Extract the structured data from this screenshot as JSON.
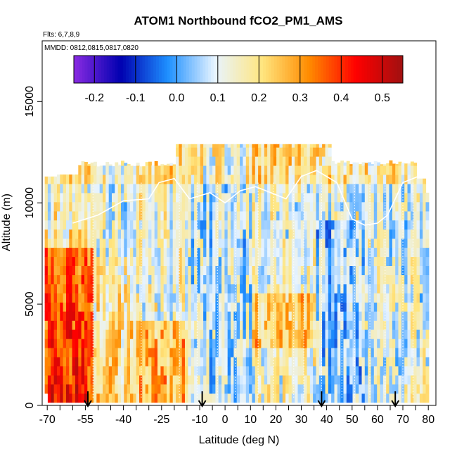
{
  "chart_data": {
    "type": "heatmap",
    "title": "ATOM1 Northbound fCO2_PM1_AMS",
    "flights_label": "Flts: 6,7,8,9",
    "dates_label": "MMDD: 0812,0815,0817,0820",
    "xlabel": "Latitude (deg N)",
    "ylabel": "Altitude (m)",
    "xlim": [
      -72,
      83
    ],
    "ylim": [
      0,
      18000
    ],
    "x_ticks": [
      -70,
      -55,
      -40,
      -25,
      -10,
      0,
      10,
      20,
      30,
      40,
      50,
      60,
      70,
      80
    ],
    "x_tick_labels": [
      "-70",
      "-55",
      "-40",
      "-25",
      "-10",
      "0",
      "10",
      "20",
      "30",
      "40",
      "50",
      "60",
      "70",
      "80"
    ],
    "y_ticks": [
      0,
      5000,
      10000,
      15000
    ],
    "y_tick_labels": [
      "0",
      "5000",
      "10000",
      "15000"
    ],
    "colorbar": {
      "range": [
        -0.25,
        0.55
      ],
      "ticks": [
        -0.2,
        -0.1,
        0.0,
        0.1,
        0.2,
        0.3,
        0.4,
        0.5
      ],
      "tick_labels": [
        "-0.2",
        "-0.1",
        "0.0",
        "0.1",
        "0.2",
        "0.3",
        "0.4",
        "0.5"
      ],
      "colors": [
        "#8a2be2",
        "#0000b0",
        "#1e90ff",
        "#e8f4ff",
        "#ffe680",
        "#ff8c00",
        "#ff0000",
        "#a01010"
      ]
    },
    "profile_arrows_lat": [
      -54,
      -9,
      38,
      67
    ],
    "grid": false,
    "legend": "colorbar-top"
  }
}
